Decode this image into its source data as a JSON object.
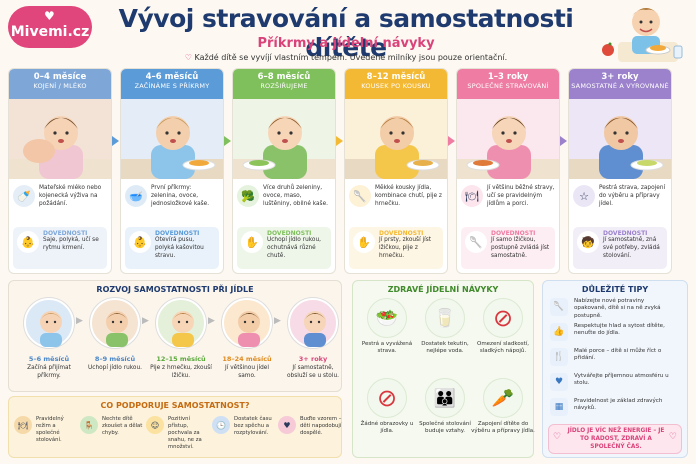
{
  "header": {
    "logo": "Mivemi.cz",
    "title": "Vývoj stravování a samostatnosti dítěte",
    "subtitle": "Příkrmy a jídelní návyky",
    "note": "Každé dítě se vyvíjí vlastním tempem. Uvedené milníky jsou pouze orientační."
  },
  "stages": [
    {
      "age": "0–4 měsíce",
      "label": "KOJENÍ / MLÉKO",
      "color": "#7ea7d8",
      "text": "Mateřské mléko nebo kojenecká výživa na požádání.",
      "skill_title": "DOVEDNOSTI",
      "skill": "Saje, polyká, učí se rytmu krmení."
    },
    {
      "age": "4–6 měsíců",
      "label": "ZAČÍNÁME S PŘÍKRMY",
      "color": "#5b9bd8",
      "text": "První příkrmy: zelenina, ovoce, jednosložkové kaše.",
      "skill_title": "DOVEDNOSTI",
      "skill": "Otevírá pusu, polyká kašovitou stravu."
    },
    {
      "age": "6–8 měsíců",
      "label": "ROZŠIŘUJEME",
      "color": "#7fbf5c",
      "text": "Více druhů zeleniny, ovoce, maso, luštěniny, obilné kaše.",
      "skill_title": "DOVEDNOSTI",
      "skill": "Uchopí jídlo rukou, ochutnává různé chutě."
    },
    {
      "age": "8–12 měsíců",
      "label": "KOUSEK PO KOUSKU",
      "color": "#f4b934",
      "text": "Měkké kousky jídla, kombinace chutí, pije z hrnečku.",
      "skill_title": "DOVEDNOSTI",
      "skill": "Jí prsty, zkouší jíst lžičkou, pije z hrnečku."
    },
    {
      "age": "1–3 roky",
      "label": "SPOLEČNÉ STRAVOVÁNÍ",
      "color": "#ee7ca3",
      "text": "Jí většinu běžné stravy, učí se pravidelným jídlům a porci.",
      "skill_title": "DOVEDNOSTI",
      "skill": "Jí samo lžičkou, postupně zvládá jíst samostatně."
    },
    {
      "age": "3+ roky",
      "label": "SAMOSTATNÉ A VYROVNANÉ",
      "color": "#9c82cc",
      "text": "Pestrá strava, zapojení do výběru a přípravy jídel.",
      "skill_title": "DOVEDNOSTI",
      "skill": "Jí samostatně, zná své potřeby, zvládá stolování."
    }
  ],
  "independence": {
    "title": "ROZVOJ SAMOSTATNOSTI PŘI JÍDLE",
    "steps": [
      {
        "age": "5–6 měsíců",
        "text": "Začíná přijímat příkrmy.",
        "color": "#4a86c8"
      },
      {
        "age": "8–9 měsíců",
        "text": "Uchopí jídlo rukou.",
        "color": "#4a86c8"
      },
      {
        "age": "12–15 měsíců",
        "text": "Pije z hrnečku, zkouší lžičku.",
        "color": "#5aa83a"
      },
      {
        "age": "18–24 měsíců",
        "text": "Jí většinou jídel samo.",
        "color": "#e08a1e"
      },
      {
        "age": "3+ roky",
        "text": "Jí samostatně, obsluží se u stolu.",
        "color": "#d9437a"
      }
    ]
  },
  "support": {
    "title": "CO PODPORUJE SAMOSTATNOST?",
    "items": [
      {
        "text": "Pravidelný režim a společné stolování.",
        "icon": "plate-icon",
        "color": "#f6d9a8"
      },
      {
        "text": "Nechte dítě zkoušet a dělat chyby.",
        "icon": "chair-icon",
        "color": "#cfe8c4"
      },
      {
        "text": "Pozitivní přístup, pochvala za snahu, ne za množství.",
        "icon": "smile-icon",
        "color": "#fbe2a0"
      },
      {
        "text": "Dostatek času bez spěchu a rozptylování.",
        "icon": "clock-icon",
        "color": "#cfe0f4"
      },
      {
        "text": "Buďte vzorem – děti napodobují dospělé.",
        "icon": "heart-icon",
        "color": "#f7cad8"
      }
    ]
  },
  "habits": {
    "title": "ZDRAVÉ JÍDELNÍ NÁVYKY",
    "items": [
      {
        "text": "Pestrá a vyvážená strava.",
        "icon": "salad-icon"
      },
      {
        "text": "Dostatek tekutin, nejlépe voda.",
        "icon": "water-icon"
      },
      {
        "text": "Omezení sladkostí, sladkých nápojů.",
        "icon": "no-candy-icon"
      },
      {
        "text": "Žádné obrazovky u jídla.",
        "icon": "no-screen-icon"
      },
      {
        "text": "Společné stolování buduje vztahy.",
        "icon": "family-icon"
      },
      {
        "text": "Zapojení dítěte do výběru a přípravy jídla.",
        "icon": "vegetables-icon"
      }
    ]
  },
  "tips": {
    "title": "DŮLEŽITÉ TIPY",
    "items": [
      {
        "text": "Nabízejte nové potraviny opakovaně, dítě si na ně zvyká postupně.",
        "icon": "spoon-icon"
      },
      {
        "text": "Respektujte hlad a sytost dítěte, nenuťte do jídla.",
        "icon": "thumb-icon"
      },
      {
        "text": "Malé porce – dítě si může říct o přidání.",
        "icon": "utensils-icon"
      },
      {
        "text": "Vytvářejte příjemnou atmosféru u stolu.",
        "icon": "heart-icon"
      },
      {
        "text": "Pravidelnost je základ zdravých návyků.",
        "icon": "calendar-icon"
      }
    ],
    "footer": "JÍDLO JE VÍC NEŽ ENERGIE – JE TO RADOST, ZDRAVÍ A SPOLEČNÝ ČAS."
  }
}
